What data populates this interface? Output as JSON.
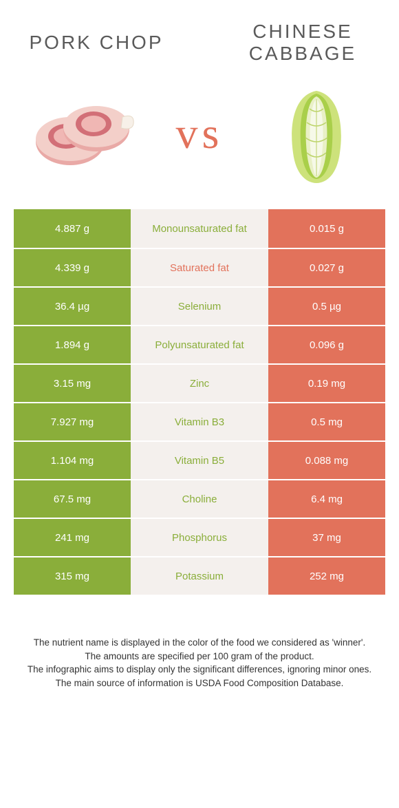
{
  "colors": {
    "pork": "#8aae3a",
    "cabbage": "#e2725b",
    "mid_bg": "#f4f0ed",
    "title_text": "#5a5a5a",
    "vs_text": "#e2725b"
  },
  "header": {
    "left_title": "Pork chop",
    "right_title": "Chinese cabbage",
    "vs": "vs"
  },
  "rows": [
    {
      "left": "4.887 g",
      "mid": "Monounsaturated fat",
      "right": "0.015 g",
      "winner": "pork"
    },
    {
      "left": "4.339 g",
      "mid": "Saturated fat",
      "right": "0.027 g",
      "winner": "cabbage"
    },
    {
      "left": "36.4 µg",
      "mid": "Selenium",
      "right": "0.5 µg",
      "winner": "pork"
    },
    {
      "left": "1.894 g",
      "mid": "Polyunsaturated fat",
      "right": "0.096 g",
      "winner": "pork"
    },
    {
      "left": "3.15 mg",
      "mid": "Zinc",
      "right": "0.19 mg",
      "winner": "pork"
    },
    {
      "left": "7.927 mg",
      "mid": "Vitamin B3",
      "right": "0.5 mg",
      "winner": "pork"
    },
    {
      "left": "1.104 mg",
      "mid": "Vitamin B5",
      "right": "0.088 mg",
      "winner": "pork"
    },
    {
      "left": "67.5 mg",
      "mid": "Choline",
      "right": "6.4 mg",
      "winner": "pork"
    },
    {
      "left": "241 mg",
      "mid": "Phosphorus",
      "right": "37 mg",
      "winner": "pork"
    },
    {
      "left": "315 mg",
      "mid": "Potassium",
      "right": "252 mg",
      "winner": "pork"
    }
  ],
  "footnotes": [
    "The nutrient name is displayed in the color of the food we considered as 'winner'.",
    "The amounts are specified per 100 gram of the product.",
    "The infographic aims to display only the significant differences, ignoring minor ones.",
    "The main source of information is USDA Food Composition Database."
  ]
}
